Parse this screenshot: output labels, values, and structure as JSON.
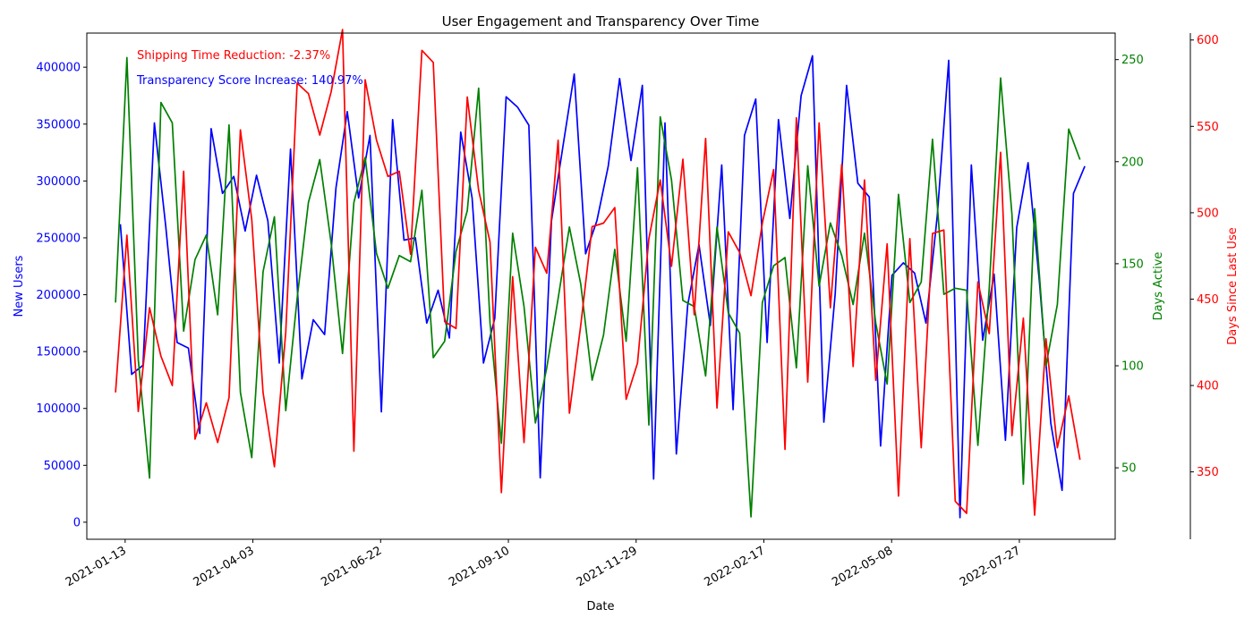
{
  "chart_data": {
    "type": "line",
    "title": "User Engagement and Transparency Over Time",
    "xlabel": "Date",
    "x_ticks": [
      "2021-01-13",
      "2021-04-03",
      "2021-06-22",
      "2021-09-10",
      "2021-11-29",
      "2022-02-17",
      "2022-05-08",
      "2022-07-27"
    ],
    "x_range": [
      "2020-12-20",
      "2022-09-25"
    ],
    "annotations": [
      {
        "text": "Shipping Time Reduction: -2.37%",
        "color": "#ff0000"
      },
      {
        "text": "Transparency Score Increase: 140.97%",
        "color": "#0000ff"
      }
    ],
    "axes": [
      {
        "label": "New Users",
        "side": "left",
        "color": "#0000ff",
        "ylim": [
          -15000,
          430000
        ],
        "ticks": [
          "0",
          "50000",
          "100000",
          "150000",
          "200000",
          "250000",
          "300000",
          "350000",
          "400000"
        ]
      },
      {
        "label": "Days Active",
        "side": "right",
        "color": "#008000",
        "ylim": [
          15,
          263
        ],
        "ticks": [
          "50",
          "100",
          "150",
          "200",
          "250"
        ]
      },
      {
        "label": "Days Since Last Use",
        "side": "right-outer",
        "color": "#ff0000",
        "ylim": [
          311,
          604
        ],
        "ticks": [
          "350",
          "400",
          "450",
          "500",
          "550",
          "600"
        ]
      }
    ],
    "series": [
      {
        "axis": 0,
        "color": "#0000ff",
        "start": "2021-01-10",
        "end": "2022-09-06",
        "values": [
          262000,
          130000,
          138000,
          351000,
          260000,
          158000,
          153000,
          78000,
          346000,
          289000,
          304000,
          256000,
          305000,
          265000,
          140000,
          328000,
          126000,
          178000,
          165000,
          294000,
          361000,
          285000,
          340000,
          97000,
          354000,
          248000,
          250000,
          175000,
          204000,
          162000,
          343000,
          285000,
          140000,
          179000,
          374000,
          365000,
          349000,
          39000,
          265000,
          330000,
          394000,
          236000,
          265000,
          313000,
          390000,
          318000,
          384000,
          38000,
          351000,
          60000,
          191000,
          244000,
          173000,
          314000,
          99000,
          340000,
          372000,
          158000,
          354000,
          267000,
          375000,
          410000,
          88000,
          201000,
          384000,
          298000,
          286000,
          67000,
          217000,
          228000,
          219000,
          175000,
          270000,
          406000,
          4000,
          314000,
          160000,
          218000,
          72000,
          259000,
          316000,
          211000,
          87000,
          28000,
          289000,
          313000
        ]
      },
      {
        "axis": 1,
        "color": "#008000",
        "start": "2021-01-07",
        "end": "2022-09-03",
        "values": [
          131,
          251,
          103,
          45,
          229,
          219,
          117,
          152,
          164,
          125,
          218,
          87,
          55,
          146,
          173,
          78,
          133,
          180,
          201,
          160,
          106,
          180,
          202,
          155,
          138,
          154,
          151,
          186,
          104,
          112,
          156,
          176,
          236,
          121,
          62,
          165,
          129,
          72,
          99,
          133,
          168,
          140,
          93,
          115,
          157,
          112,
          197,
          71,
          222,
          191,
          132,
          129,
          95,
          168,
          126,
          116,
          26,
          131,
          149,
          153,
          99,
          198,
          139,
          170,
          154,
          130,
          165,
          121,
          91,
          184,
          131,
          141,
          211,
          135,
          138,
          137,
          61,
          138,
          241,
          174,
          42,
          177,
          100,
          130,
          216,
          201
        ]
      },
      {
        "axis": 2,
        "color": "#ff0000",
        "start": "2021-01-07",
        "end": "2022-09-03",
        "values": [
          396,
          487,
          385,
          445,
          417,
          400,
          524,
          369,
          390,
          367,
          393,
          548,
          496,
          396,
          353,
          431,
          575,
          569,
          545,
          570,
          606,
          362,
          577,
          542,
          521,
          524,
          476,
          594,
          587,
          437,
          433,
          567,
          513,
          483,
          338,
          463,
          367,
          480,
          465,
          542,
          384,
          435,
          492,
          494,
          503,
          392,
          413,
          485,
          519,
          469,
          531,
          441,
          543,
          387,
          489,
          477,
          452,
          494,
          525,
          363,
          555,
          402,
          552,
          445,
          528,
          411,
          519,
          403,
          482,
          336,
          485,
          364,
          488,
          490,
          333,
          326,
          460,
          430,
          535,
          371,
          439,
          325,
          427,
          364,
          394,
          357
        ]
      }
    ]
  }
}
